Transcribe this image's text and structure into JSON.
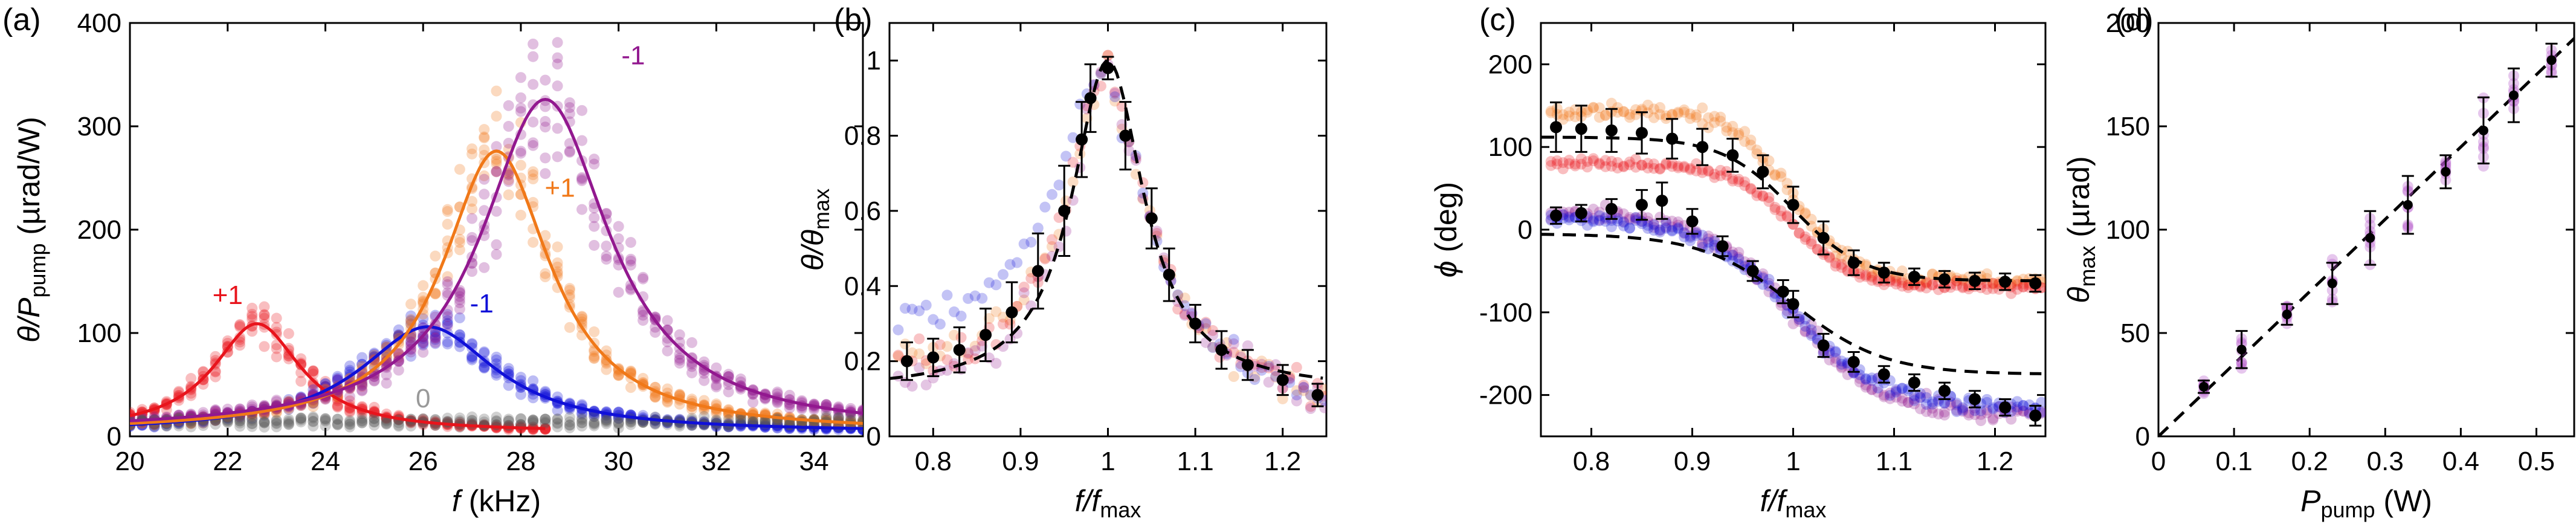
{
  "figure": {
    "panel_labels": [
      "(a)",
      "(b)",
      "(c)",
      "(d)"
    ]
  },
  "chart_data": [
    {
      "panel": "(a)",
      "type": "line",
      "xlabel": {
        "sym": "f",
        "unit": " (kHz)"
      },
      "ylabel": {
        "main": "θ/P",
        "sub": "pump",
        "unit": " (µrad/W)"
      },
      "xlim": [
        20,
        35
      ],
      "ylim": [
        0,
        400
      ],
      "xticks": [
        20,
        22,
        24,
        26,
        28,
        30,
        32,
        34
      ],
      "yticks": [
        0,
        100,
        200,
        300,
        400
      ],
      "grid": false,
      "series": [
        {
          "name": "+1",
          "color": "#e8141c",
          "peak_x": 22.6,
          "peak_y": 105,
          "gamma": 1.1,
          "x_range": [
            20,
            28.5
          ],
          "annotation": "+1"
        },
        {
          "name": "-1",
          "color": "#1010d8",
          "peak_x": 26.1,
          "peak_y": 102,
          "gamma": 1.7,
          "x_range": [
            20,
            35
          ],
          "annotation": "-1"
        },
        {
          "name": "+1",
          "color": "#f07818",
          "peak_x": 27.5,
          "peak_y": 272,
          "gamma": 1.35,
          "x_range": [
            20,
            35
          ],
          "annotation": "+1"
        },
        {
          "name": "-1",
          "color": "#92188f",
          "peak_x": 28.5,
          "peak_y": 322,
          "gamma": 1.6,
          "x_range": [
            20,
            35
          ],
          "annotation": "-1"
        },
        {
          "name": "0",
          "color": "#555555",
          "constant": 10,
          "x_range": [
            20,
            35
          ],
          "annotation": "0"
        }
      ]
    },
    {
      "panel": "(b)",
      "type": "scatter",
      "xlabel": {
        "main": "f/f",
        "sub": "max"
      },
      "ylabel": {
        "main": "θ/θ",
        "sub": "max"
      },
      "xlim": [
        0.75,
        1.25
      ],
      "ylim": [
        0,
        1.1
      ],
      "xticks": [
        0.8,
        0.9,
        1,
        1.1,
        1.2
      ],
      "yticks": [
        0,
        0.2,
        0.4,
        0.6,
        0.8,
        1
      ],
      "grid": false,
      "mean_points": {
        "x": [
          0.77,
          0.8,
          0.83,
          0.86,
          0.89,
          0.92,
          0.95,
          0.97,
          0.98,
          1.0,
          1.02,
          1.05,
          1.07,
          1.1,
          1.13,
          1.16,
          1.2,
          1.24
        ],
        "y": [
          0.2,
          0.21,
          0.23,
          0.27,
          0.33,
          0.44,
          0.6,
          0.79,
          0.9,
          0.98,
          0.8,
          0.58,
          0.43,
          0.3,
          0.23,
          0.19,
          0.15,
          0.11
        ],
        "err": [
          0.05,
          0.05,
          0.06,
          0.07,
          0.08,
          0.1,
          0.12,
          0.1,
          0.09,
          0.03,
          0.09,
          0.08,
          0.07,
          0.05,
          0.05,
          0.04,
          0.04,
          0.03
        ]
      },
      "dashed_fit": {
        "peak_x": 1.0,
        "peak_y": 1.0,
        "gamma": 0.05
      }
    },
    {
      "panel": "(c)",
      "type": "scatter",
      "xlabel": {
        "main": "f/f",
        "sub": "max"
      },
      "ylabel": {
        "sym": "ϕ",
        "unit": " (deg)"
      },
      "xlim": [
        0.75,
        1.25
      ],
      "ylim": [
        -250,
        250
      ],
      "xticks": [
        0.8,
        0.9,
        1,
        1.1,
        1.2
      ],
      "yticks": [
        -200,
        -100,
        0,
        100,
        200
      ],
      "grid": false,
      "upper_mean": {
        "x": [
          0.765,
          0.79,
          0.82,
          0.85,
          0.88,
          0.91,
          0.94,
          0.97,
          1.0,
          1.03,
          1.06,
          1.09,
          1.12,
          1.15,
          1.18,
          1.21,
          1.24
        ],
        "y": [
          124,
          122,
          120,
          117,
          110,
          100,
          90,
          70,
          30,
          -10,
          -40,
          -52,
          -57,
          -60,
          -62,
          -63,
          -65
        ],
        "err": [
          30,
          28,
          26,
          25,
          24,
          22,
          20,
          20,
          22,
          20,
          15,
          12,
          10,
          10,
          10,
          10,
          10
        ]
      },
      "lower_mean": {
        "x": [
          0.765,
          0.79,
          0.82,
          0.85,
          0.87,
          0.9,
          0.93,
          0.96,
          0.99,
          1.0,
          1.03,
          1.06,
          1.09,
          1.12,
          1.15,
          1.18,
          1.21,
          1.24
        ],
        "y": [
          17,
          20,
          25,
          30,
          35,
          10,
          -20,
          -50,
          -75,
          -90,
          -140,
          -160,
          -175,
          -185,
          -195,
          -205,
          -215,
          -225
        ],
        "err": [
          10,
          10,
          12,
          18,
          22,
          15,
          12,
          12,
          14,
          16,
          14,
          12,
          10,
          10,
          10,
          10,
          10,
          12
        ]
      },
      "upper_fit": {
        "center": 1.0,
        "width": 0.035,
        "high": 112,
        "low": -62
      },
      "lower_fit": {
        "center": 1.0,
        "width": 0.045,
        "high": -5,
        "low": -175
      }
    },
    {
      "panel": "(d)",
      "type": "scatter",
      "xlabel": {
        "main": "P",
        "sub": "pump",
        "unit": " (W)"
      },
      "ylabel": {
        "main": "θ",
        "sub": "max",
        "unit": " (µrad)"
      },
      "xlim": [
        0,
        0.55
      ],
      "ylim": [
        0,
        200
      ],
      "xticks": [
        0,
        0.1,
        0.2,
        0.3,
        0.4,
        0.5
      ],
      "yticks": [
        0,
        50,
        100,
        150,
        200
      ],
      "grid": false,
      "mean_points": {
        "x": [
          0.06,
          0.11,
          0.17,
          0.23,
          0.28,
          0.33,
          0.38,
          0.43,
          0.47,
          0.52
        ],
        "y": [
          24,
          42,
          59,
          74,
          96,
          112,
          128,
          148,
          165,
          182
        ],
        "err": [
          3,
          9,
          5,
          10,
          13,
          14,
          8,
          16,
          13,
          8
        ]
      },
      "dashed_fit": {
        "slope": 350,
        "intercept": 0
      }
    }
  ]
}
